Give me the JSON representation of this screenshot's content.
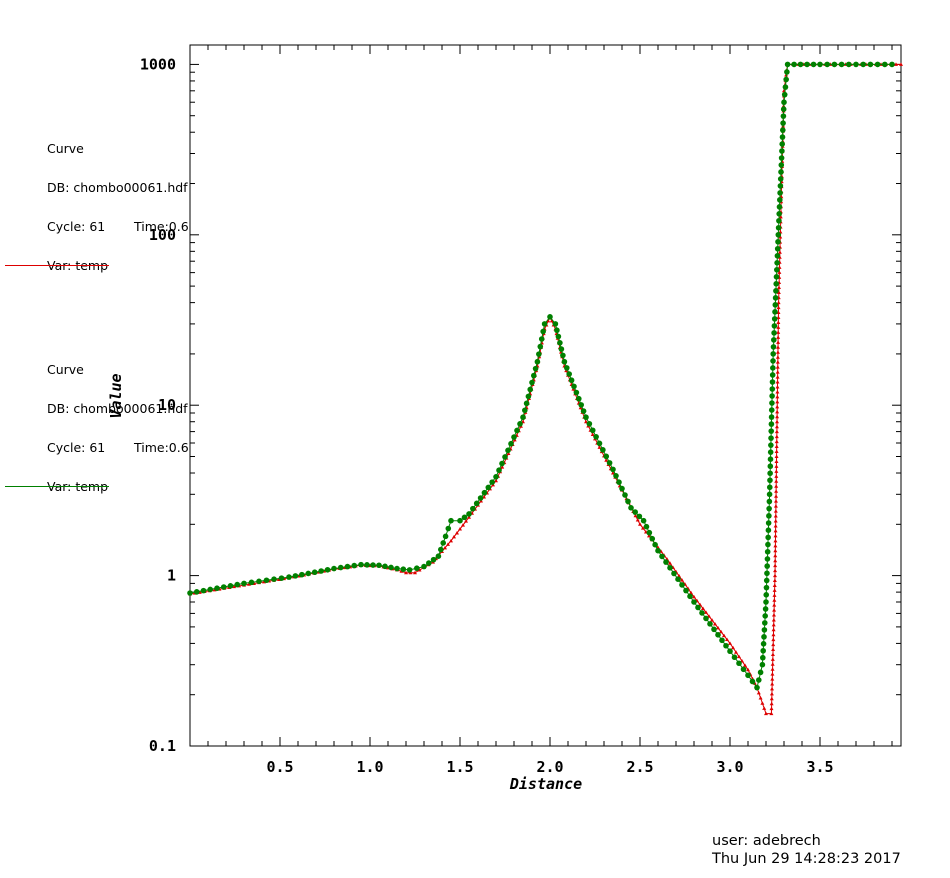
{
  "chart_data": {
    "type": "line",
    "xlabel": "Distance",
    "ylabel": "Value",
    "xscale": "linear",
    "yscale": "log",
    "xlim": [
      0.0,
      3.95
    ],
    "ylim": [
      0.1,
      1300
    ],
    "x_ticks": [
      "0.5",
      "1.0",
      "1.5",
      "2.0",
      "2.5",
      "3.0",
      "3.5"
    ],
    "y_ticks": [
      "0.1",
      "1",
      "10",
      "100",
      "1000"
    ],
    "grid": false,
    "legend_placement": "top-left",
    "series": [
      {
        "color": "#dd0000",
        "marker": "small-triangle",
        "points": [
          [
            0.0,
            0.78
          ],
          [
            0.3,
            0.88
          ],
          [
            0.55,
            0.97
          ],
          [
            0.8,
            1.09
          ],
          [
            0.95,
            1.15
          ],
          [
            1.05,
            1.14
          ],
          [
            1.15,
            1.08
          ],
          [
            1.2,
            1.04
          ],
          [
            1.25,
            1.04
          ],
          [
            1.35,
            1.2
          ],
          [
            1.45,
            1.6
          ],
          [
            1.55,
            2.2
          ],
          [
            1.7,
            3.6
          ],
          [
            1.85,
            8.0
          ],
          [
            1.93,
            17.0
          ],
          [
            1.97,
            28.0
          ],
          [
            2.0,
            33.0
          ],
          [
            2.03,
            28.0
          ],
          [
            2.08,
            17.0
          ],
          [
            2.2,
            8.0
          ],
          [
            2.35,
            4.0
          ],
          [
            2.5,
            2.0
          ],
          [
            2.65,
            1.25
          ],
          [
            2.8,
            0.75
          ],
          [
            3.0,
            0.4
          ],
          [
            3.1,
            0.28
          ],
          [
            3.15,
            0.22
          ],
          [
            3.2,
            0.155
          ],
          [
            3.23,
            0.155
          ],
          [
            3.25,
            1.0
          ],
          [
            3.27,
            40.0
          ],
          [
            3.3,
            700.0
          ],
          [
            3.32,
            1000.0
          ],
          [
            3.5,
            1000.0
          ],
          [
            3.7,
            1000.0
          ],
          [
            3.95,
            1000.0
          ]
        ]
      },
      {
        "color": "#008000",
        "marker": "dot",
        "points": [
          [
            0.0,
            0.79
          ],
          [
            0.3,
            0.9
          ],
          [
            0.55,
            0.98
          ],
          [
            0.8,
            1.1
          ],
          [
            0.95,
            1.16
          ],
          [
            1.05,
            1.15
          ],
          [
            1.15,
            1.1
          ],
          [
            1.22,
            1.08
          ],
          [
            1.3,
            1.13
          ],
          [
            1.38,
            1.3
          ],
          [
            1.42,
            1.7
          ],
          [
            1.45,
            2.1
          ],
          [
            1.5,
            2.1
          ],
          [
            1.55,
            2.3
          ],
          [
            1.7,
            3.8
          ],
          [
            1.85,
            8.5
          ],
          [
            1.93,
            18.0
          ],
          [
            1.97,
            30.0
          ],
          [
            2.0,
            33.0
          ],
          [
            2.03,
            30.0
          ],
          [
            2.08,
            18.0
          ],
          [
            2.2,
            8.5
          ],
          [
            2.35,
            4.2
          ],
          [
            2.45,
            2.5
          ],
          [
            2.52,
            2.1
          ],
          [
            2.6,
            1.4
          ],
          [
            2.8,
            0.7
          ],
          [
            3.0,
            0.36
          ],
          [
            3.1,
            0.26
          ],
          [
            3.15,
            0.22
          ],
          [
            3.18,
            0.3
          ],
          [
            3.2,
            0.7
          ],
          [
            3.22,
            3.0
          ],
          [
            3.24,
            20.0
          ],
          [
            3.27,
            110.0
          ],
          [
            3.3,
            600.0
          ],
          [
            3.32,
            1000.0
          ],
          [
            3.5,
            1000.0
          ],
          [
            3.7,
            1000.0
          ],
          [
            3.9,
            1000.0
          ]
        ]
      }
    ]
  },
  "legend": [
    {
      "title": "Curve",
      "db": "DB: chombo00061.hdf",
      "cycle": "Cycle: 61",
      "time": "Time:0.6",
      "var": "Var: temp",
      "color": "#dd0000"
    },
    {
      "title": "Curve",
      "db": "DB: chombo00061.hdf",
      "cycle": "Cycle: 61",
      "time": "Time:0.6",
      "var": "Var: temp",
      "color": "#008000"
    }
  ],
  "user_info": {
    "user": "user: adebrech",
    "date": "Thu Jun 29 14:28:23 2017"
  }
}
